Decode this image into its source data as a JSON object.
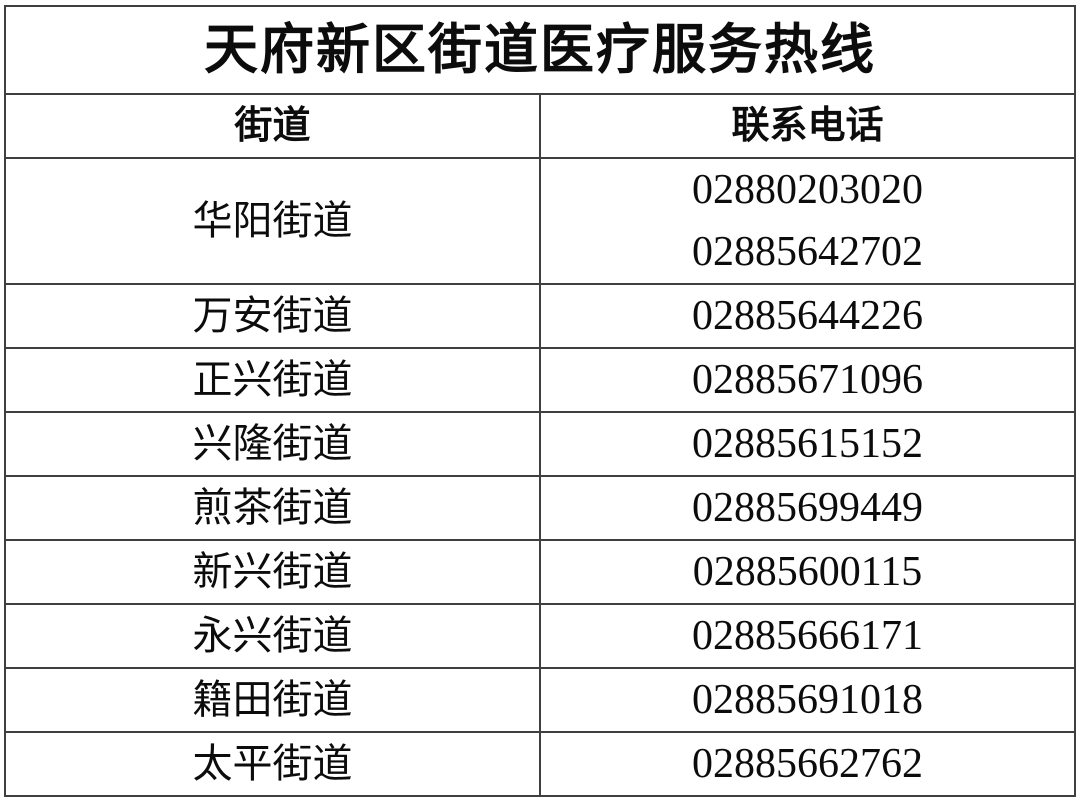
{
  "table": {
    "title": "天府新区街道医疗服务热线",
    "columns": {
      "street": "街道",
      "phone": "联系电话"
    },
    "rows": [
      {
        "street": "华阳街道",
        "phones": [
          "02880203020",
          "02885642702"
        ]
      },
      {
        "street": "万安街道",
        "phones": [
          "02885644226"
        ]
      },
      {
        "street": "正兴街道",
        "phones": [
          "02885671096"
        ]
      },
      {
        "street": "兴隆街道",
        "phones": [
          "02885615152"
        ]
      },
      {
        "street": "煎茶街道",
        "phones": [
          "02885699449"
        ]
      },
      {
        "street": "新兴街道",
        "phones": [
          "02885600115"
        ]
      },
      {
        "street": "永兴街道",
        "phones": [
          "02885666171"
        ]
      },
      {
        "street": "籍田街道",
        "phones": [
          "02885691018"
        ]
      },
      {
        "street": "太平街道",
        "phones": [
          "02885662762"
        ]
      }
    ]
  },
  "colors": {
    "border": "#3f3f3f",
    "text": "#0c0c0c",
    "background": "#ffffff"
  }
}
